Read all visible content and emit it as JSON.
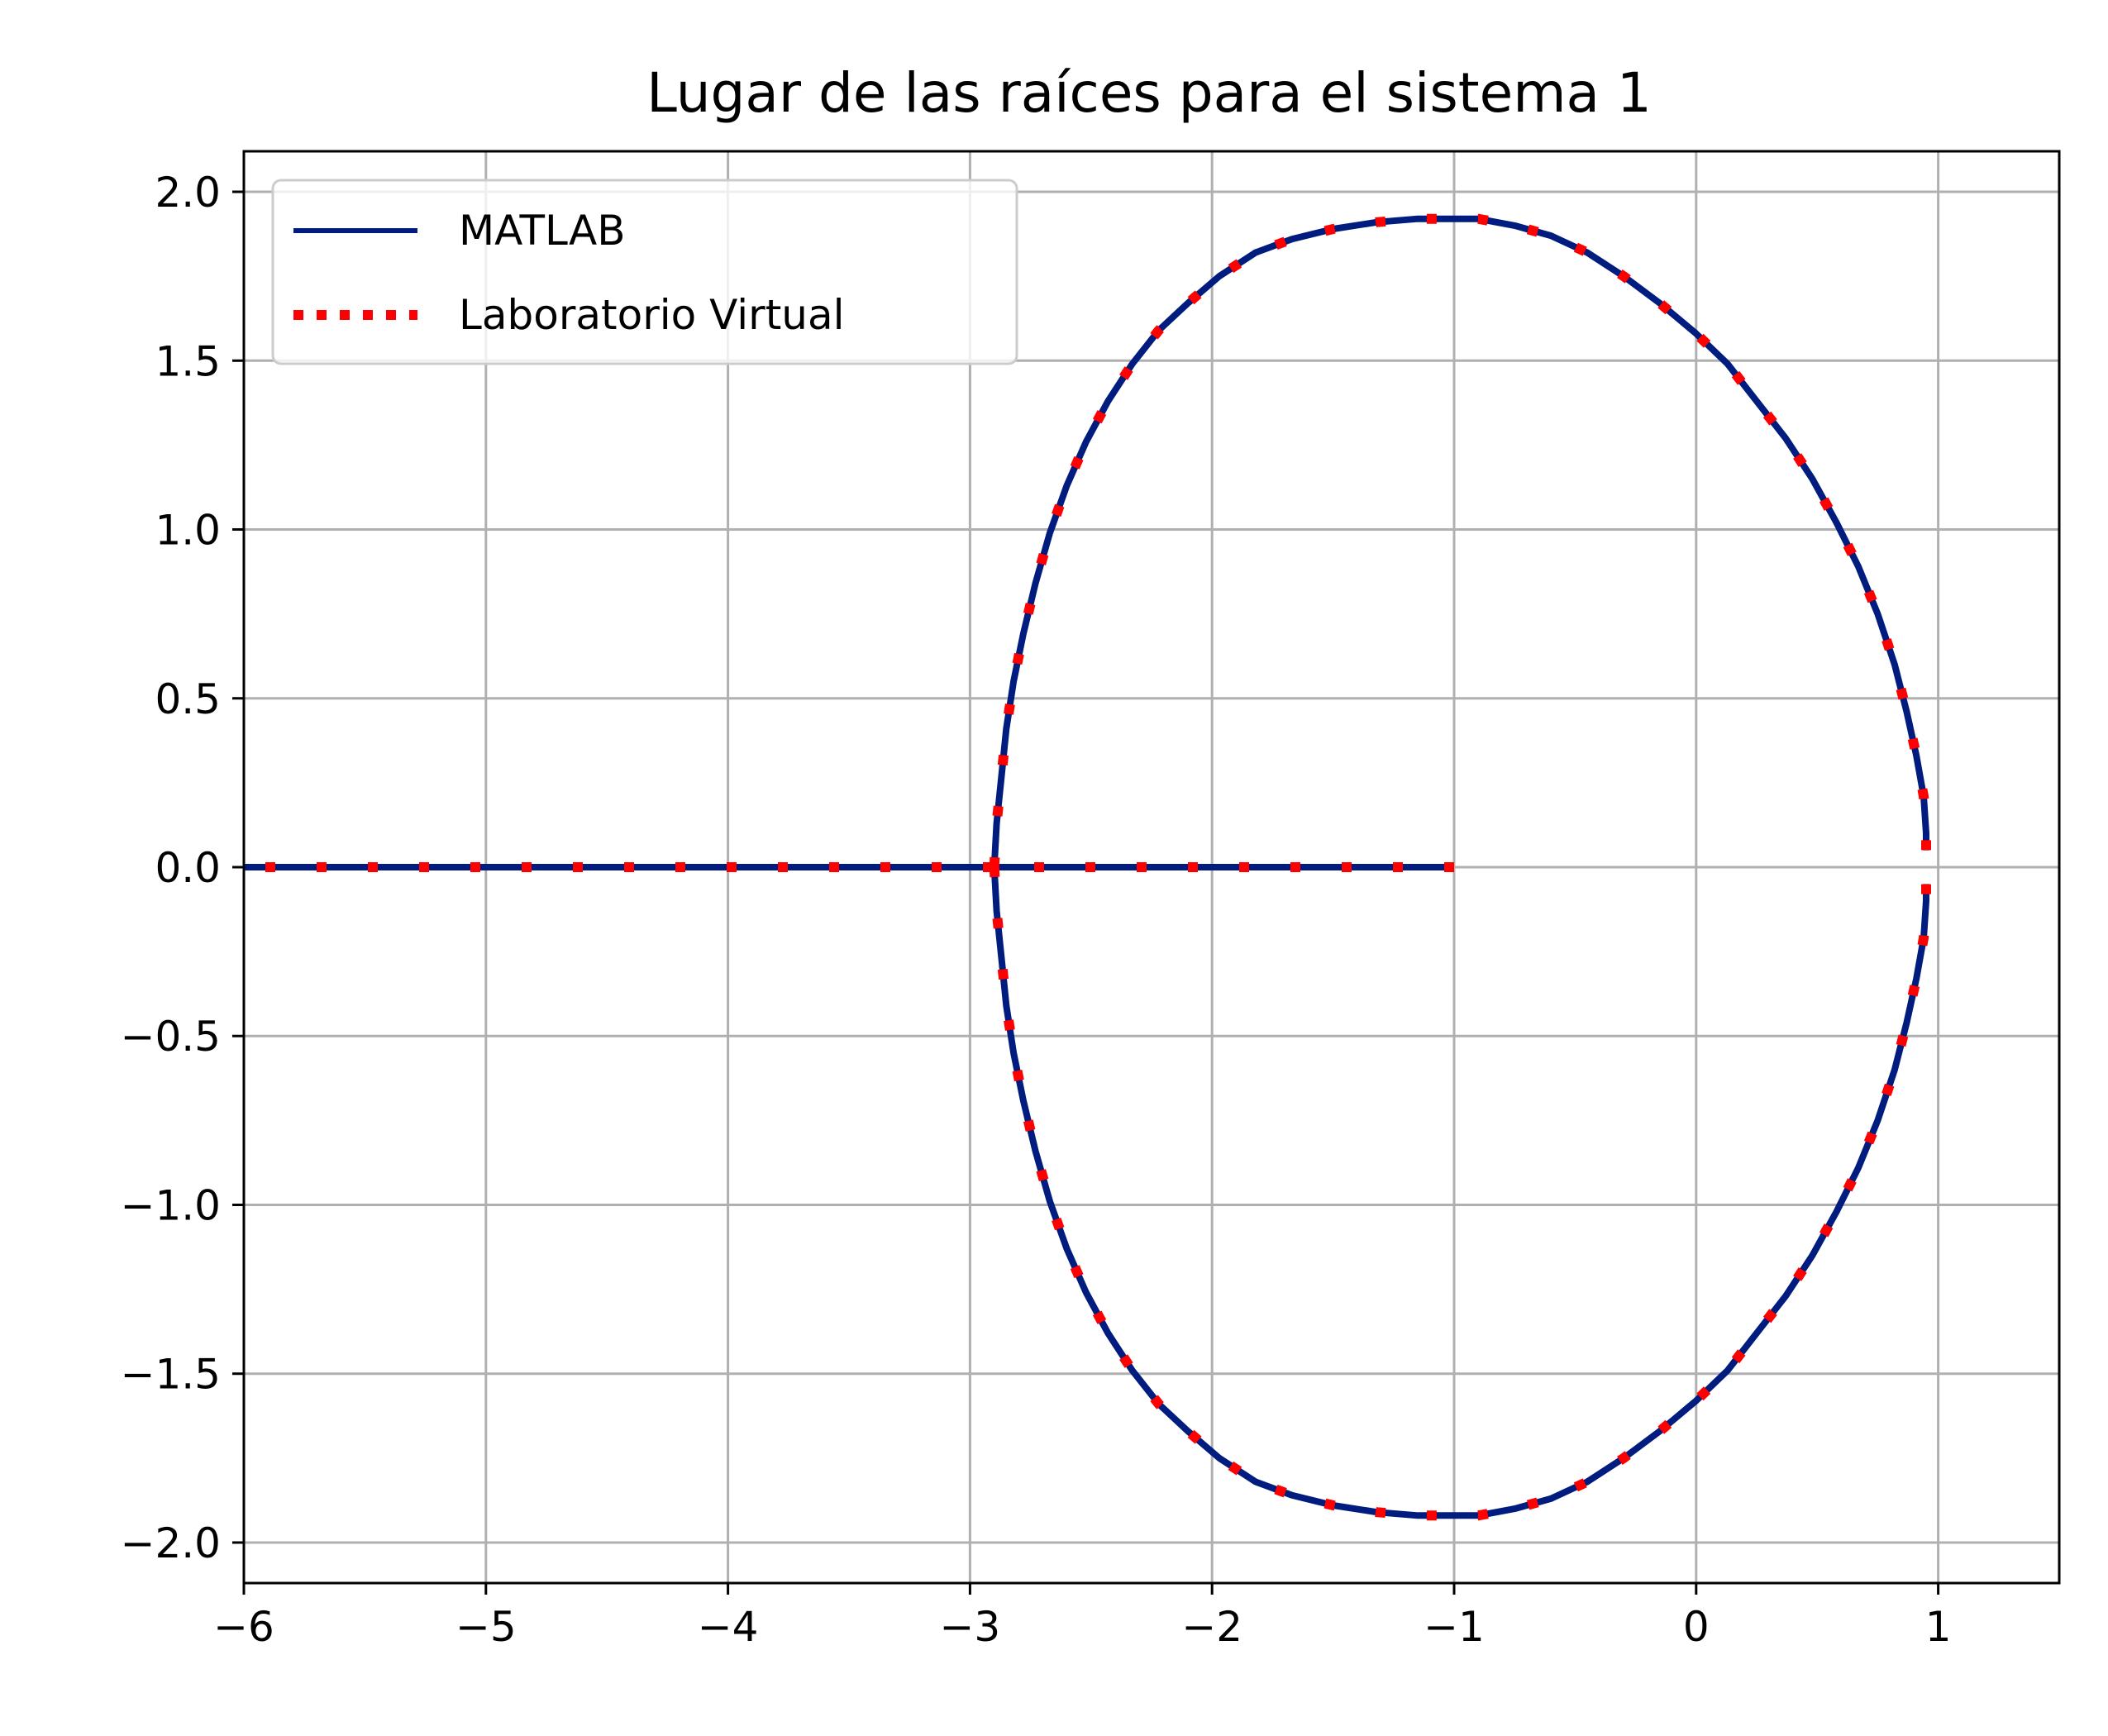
{
  "chart_data": {
    "type": "line",
    "title": "Lugar de las raíces para el sistema 1",
    "xlabel": "",
    "ylabel": "",
    "xlim": [
      -6,
      1.5
    ],
    "ylim": [
      -2.12,
      2.12
    ],
    "grid": true,
    "legend_position": "top-left",
    "xticks": [
      -6,
      -5,
      -4,
      -3,
      -2,
      -1,
      0,
      1
    ],
    "xtick_labels": [
      "−6",
      "−5",
      "−4",
      "−3",
      "−2",
      "−1",
      "0",
      "1"
    ],
    "yticks": [
      2.0,
      1.5,
      1.0,
      0.5,
      0.0,
      -0.5,
      -1.0,
      -1.5,
      -2.0
    ],
    "ytick_labels": [
      "2.0",
      "1.5",
      "1.0",
      "0.5",
      "0.0",
      "−0.5",
      "−1.0",
      "−1.5",
      "−2.0"
    ],
    "series": [
      {
        "name": "MATLAB",
        "color": "#001c7f",
        "style": "solid",
        "branches": [
          {
            "x": [
              -1.0,
              -6.0
            ],
            "y": [
              0.0,
              0.0
            ]
          },
          {
            "x": [
              -2.9,
              -2.89,
              -2.87,
              -2.85,
              -2.82,
              -2.78,
              -2.73,
              -2.67,
              -2.6,
              -2.52,
              -2.43,
              -2.33,
              -2.22,
              -2.1,
              -1.97,
              -1.82,
              -1.67,
              -1.5,
              -1.32,
              -1.15,
              -1.0,
              -0.9,
              -0.75,
              -0.6,
              -0.45,
              -0.3,
              -0.15,
              0.0,
              0.13,
              0.25,
              0.37,
              0.48,
              0.58,
              0.67,
              0.75,
              0.82,
              0.87,
              0.91,
              0.94,
              0.95,
              0.95
            ],
            "y": [
              0.0,
              0.13,
              0.27,
              0.41,
              0.55,
              0.69,
              0.84,
              0.99,
              1.13,
              1.26,
              1.38,
              1.49,
              1.59,
              1.67,
              1.75,
              1.82,
              1.86,
              1.89,
              1.91,
              1.92,
              1.92,
              1.92,
              1.9,
              1.87,
              1.82,
              1.75,
              1.67,
              1.58,
              1.49,
              1.38,
              1.27,
              1.15,
              1.02,
              0.89,
              0.75,
              0.6,
              0.46,
              0.33,
              0.21,
              0.1,
              0.05
            ]
          },
          {
            "x": [
              -2.9,
              -2.89,
              -2.87,
              -2.85,
              -2.82,
              -2.78,
              -2.73,
              -2.67,
              -2.6,
              -2.52,
              -2.43,
              -2.33,
              -2.22,
              -2.1,
              -1.97,
              -1.82,
              -1.67,
              -1.5,
              -1.32,
              -1.15,
              -1.0,
              -0.9,
              -0.75,
              -0.6,
              -0.45,
              -0.3,
              -0.15,
              0.0,
              0.13,
              0.25,
              0.37,
              0.48,
              0.58,
              0.67,
              0.75,
              0.82,
              0.87,
              0.91,
              0.94,
              0.95,
              0.95
            ],
            "y": [
              0.0,
              -0.13,
              -0.27,
              -0.41,
              -0.55,
              -0.69,
              -0.84,
              -0.99,
              -1.13,
              -1.26,
              -1.38,
              -1.49,
              -1.59,
              -1.67,
              -1.75,
              -1.82,
              -1.86,
              -1.89,
              -1.91,
              -1.92,
              -1.92,
              -1.92,
              -1.9,
              -1.87,
              -1.82,
              -1.75,
              -1.67,
              -1.58,
              -1.49,
              -1.38,
              -1.27,
              -1.15,
              -1.02,
              -0.89,
              -0.75,
              -0.6,
              -0.46,
              -0.33,
              -0.21,
              -0.1,
              -0.05
            ]
          }
        ]
      },
      {
        "name": "Laboratorio Virtual",
        "color": "#ff0000",
        "style": "dotted",
        "branches": [
          {
            "x": [
              -1.0,
              -6.0
            ],
            "y": [
              0.0,
              0.0
            ]
          },
          {
            "x": [
              -2.9,
              -2.89,
              -2.87,
              -2.85,
              -2.82,
              -2.78,
              -2.73,
              -2.67,
              -2.6,
              -2.52,
              -2.43,
              -2.33,
              -2.22,
              -2.1,
              -1.97,
              -1.82,
              -1.67,
              -1.5,
              -1.32,
              -1.15,
              -1.0,
              -0.9,
              -0.75,
              -0.6,
              -0.45,
              -0.3,
              -0.15,
              0.0,
              0.13,
              0.25,
              0.37,
              0.48,
              0.58,
              0.67,
              0.75,
              0.82,
              0.87,
              0.91,
              0.94,
              0.95,
              0.95
            ],
            "y": [
              0.0,
              0.13,
              0.27,
              0.41,
              0.55,
              0.69,
              0.84,
              0.99,
              1.13,
              1.26,
              1.38,
              1.49,
              1.59,
              1.67,
              1.75,
              1.82,
              1.86,
              1.89,
              1.91,
              1.92,
              1.92,
              1.92,
              1.9,
              1.87,
              1.82,
              1.75,
              1.67,
              1.58,
              1.49,
              1.38,
              1.27,
              1.15,
              1.02,
              0.89,
              0.75,
              0.6,
              0.46,
              0.33,
              0.21,
              0.1,
              0.05
            ]
          },
          {
            "x": [
              -2.9,
              -2.89,
              -2.87,
              -2.85,
              -2.82,
              -2.78,
              -2.73,
              -2.67,
              -2.6,
              -2.52,
              -2.43,
              -2.33,
              -2.22,
              -2.1,
              -1.97,
              -1.82,
              -1.67,
              -1.5,
              -1.32,
              -1.15,
              -1.0,
              -0.9,
              -0.75,
              -0.6,
              -0.45,
              -0.3,
              -0.15,
              0.0,
              0.13,
              0.25,
              0.37,
              0.48,
              0.58,
              0.67,
              0.75,
              0.82,
              0.87,
              0.91,
              0.94,
              0.95,
              0.95
            ],
            "y": [
              0.0,
              -0.13,
              -0.27,
              -0.41,
              -0.55,
              -0.69,
              -0.84,
              -0.99,
              -1.13,
              -1.26,
              -1.38,
              -1.49,
              -1.59,
              -1.67,
              -1.75,
              -1.82,
              -1.86,
              -1.89,
              -1.91,
              -1.92,
              -1.92,
              -1.92,
              -1.9,
              -1.87,
              -1.82,
              -1.75,
              -1.67,
              -1.58,
              -1.49,
              -1.38,
              -1.27,
              -1.15,
              -1.02,
              -0.89,
              -0.75,
              -0.6,
              -0.46,
              -0.33,
              -0.21,
              -0.1,
              -0.05
            ]
          }
        ]
      }
    ]
  }
}
